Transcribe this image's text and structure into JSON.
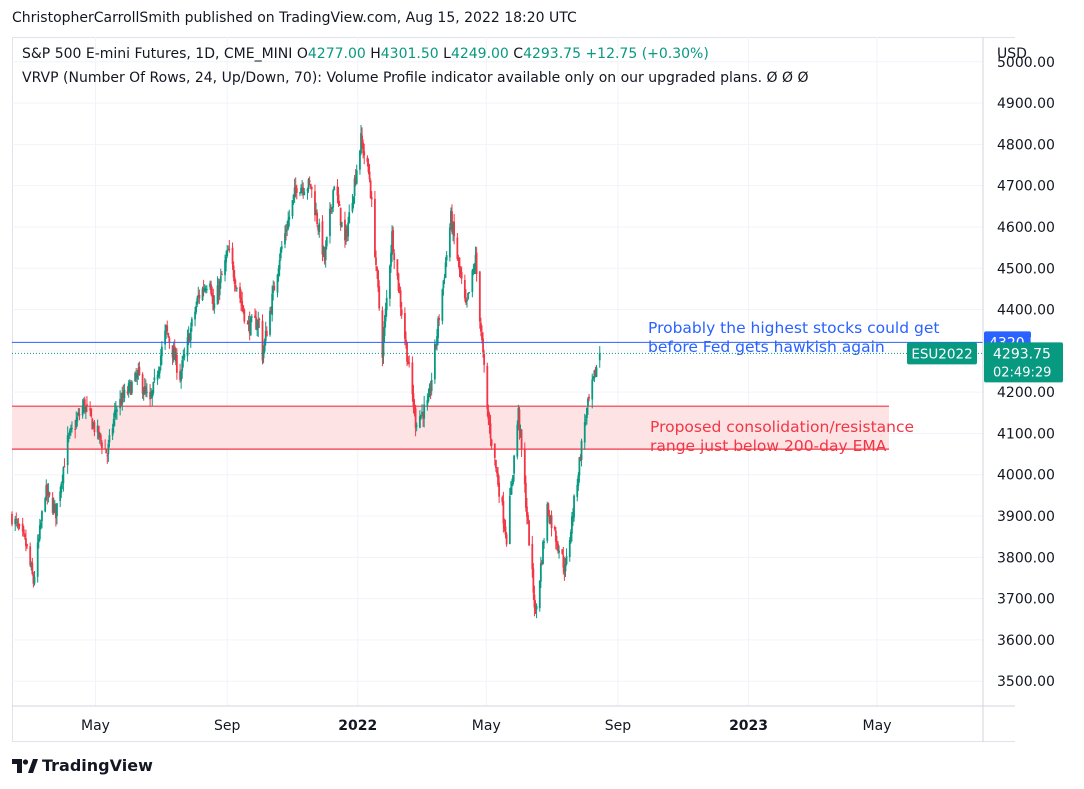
{
  "header": {
    "published": "ChristopherCarrollSmith published on TradingView.com, Aug 15, 2022 18:20 UTC"
  },
  "legend": {
    "symbol": "S&P 500 E-mini Futures, 1D, CME_MINI",
    "open_label": "O",
    "open": "4277.00",
    "high_label": "H",
    "high": "4301.50",
    "low_label": "L",
    "low": "4249.00",
    "close_label": "C",
    "close": "4293.75",
    "change": "+12.75 (+0.30%)",
    "vrvp": "VRVP (Number Of Rows, 24, Up/Down, 70): Volume Profile indicator available only on our upgraded plans.",
    "vrvp_values": "Ø  Ø  Ø"
  },
  "annotations": {
    "blue_line1": "Probably the highest stocks could get",
    "blue_line2": "before Fed gets hawkish again",
    "red_line1": "Proposed consolidation/resistance",
    "red_line2": "range just below 200-day EMA"
  },
  "price_tags": {
    "resistance": "4320.50",
    "symbol": "ESU2022",
    "last": "4293.75",
    "countdown": "02:49:29"
  },
  "colors": {
    "up": "#089981",
    "down": "#f23645",
    "blue": "#2962ff",
    "red": "#f23645",
    "band_fill": "#fde3e4",
    "grid": "#f0f3fa",
    "axis_text": "#131722"
  },
  "footer": {
    "brand": "TradingView",
    "logo": "tradingview-logo-icon"
  },
  "chart_data": {
    "type": "candlestick",
    "currency": "USD",
    "y_ticks": [
      3500,
      3600,
      3700,
      3800,
      3900,
      4000,
      4100,
      4200,
      4300,
      4400,
      4500,
      4600,
      4700,
      4800,
      4900,
      5000
    ],
    "ylim": [
      3440,
      5060
    ],
    "x_ticks": [
      {
        "label": "May",
        "date": "2021-05-01",
        "bold": false
      },
      {
        "label": "Sep",
        "date": "2021-09-01",
        "bold": false
      },
      {
        "label": "2022",
        "date": "2022-01-01",
        "bold": true
      },
      {
        "label": "May",
        "date": "2022-05-01",
        "bold": false
      },
      {
        "label": "Sep",
        "date": "2022-09-01",
        "bold": false
      },
      {
        "label": "2023",
        "date": "2023-01-01",
        "bold": true
      },
      {
        "label": "May",
        "date": "2023-05-01",
        "bold": false
      }
    ],
    "xlim": [
      "2021-02-12",
      "2023-08-08"
    ],
    "resistance_line": 4320.5,
    "resistance_band": [
      4062,
      4166
    ],
    "last_price": 4293.75,
    "price_path": [
      [
        "2021-02-12",
        3900
      ],
      [
        "2021-02-25",
        3830
      ],
      [
        "2021-03-04",
        3740
      ],
      [
        "2021-03-15",
        3960
      ],
      [
        "2021-03-25",
        3910
      ],
      [
        "2021-04-05",
        4080
      ],
      [
        "2021-04-20",
        4170
      ],
      [
        "2021-05-12",
        4050
      ],
      [
        "2021-05-20",
        4160
      ],
      [
        "2021-06-10",
        4240
      ],
      [
        "2021-06-21",
        4170
      ],
      [
        "2021-07-06",
        4350
      ],
      [
        "2021-07-19",
        4240
      ],
      [
        "2021-08-05",
        4430
      ],
      [
        "2021-08-16",
        4480
      ],
      [
        "2021-08-19",
        4400
      ],
      [
        "2021-09-02",
        4540
      ],
      [
        "2021-09-20",
        4360
      ],
      [
        "2021-10-01",
        4370
      ],
      [
        "2021-10-04",
        4290
      ],
      [
        "2021-10-20",
        4530
      ],
      [
        "2021-11-05",
        4700
      ],
      [
        "2021-11-18",
        4700
      ],
      [
        "2021-11-26",
        4590
      ],
      [
        "2021-12-01",
        4520
      ],
      [
        "2021-12-10",
        4710
      ],
      [
        "2021-12-20",
        4560
      ],
      [
        "2022-01-04",
        4810
      ],
      [
        "2022-01-12",
        4720
      ],
      [
        "2022-01-24",
        4300
      ],
      [
        "2022-02-02",
        4580
      ],
      [
        "2022-02-24",
        4130
      ],
      [
        "2022-03-08",
        4170
      ],
      [
        "2022-03-29",
        4620
      ],
      [
        "2022-04-12",
        4400
      ],
      [
        "2022-04-21",
        4520
      ],
      [
        "2022-05-02",
        4150
      ],
      [
        "2022-05-20",
        3850
      ],
      [
        "2022-05-31",
        4150
      ],
      [
        "2022-06-16",
        3660
      ],
      [
        "2022-06-27",
        3920
      ],
      [
        "2022-07-14",
        3770
      ],
      [
        "2022-08-01",
        4130
      ],
      [
        "2022-08-15",
        4293.75
      ]
    ]
  }
}
